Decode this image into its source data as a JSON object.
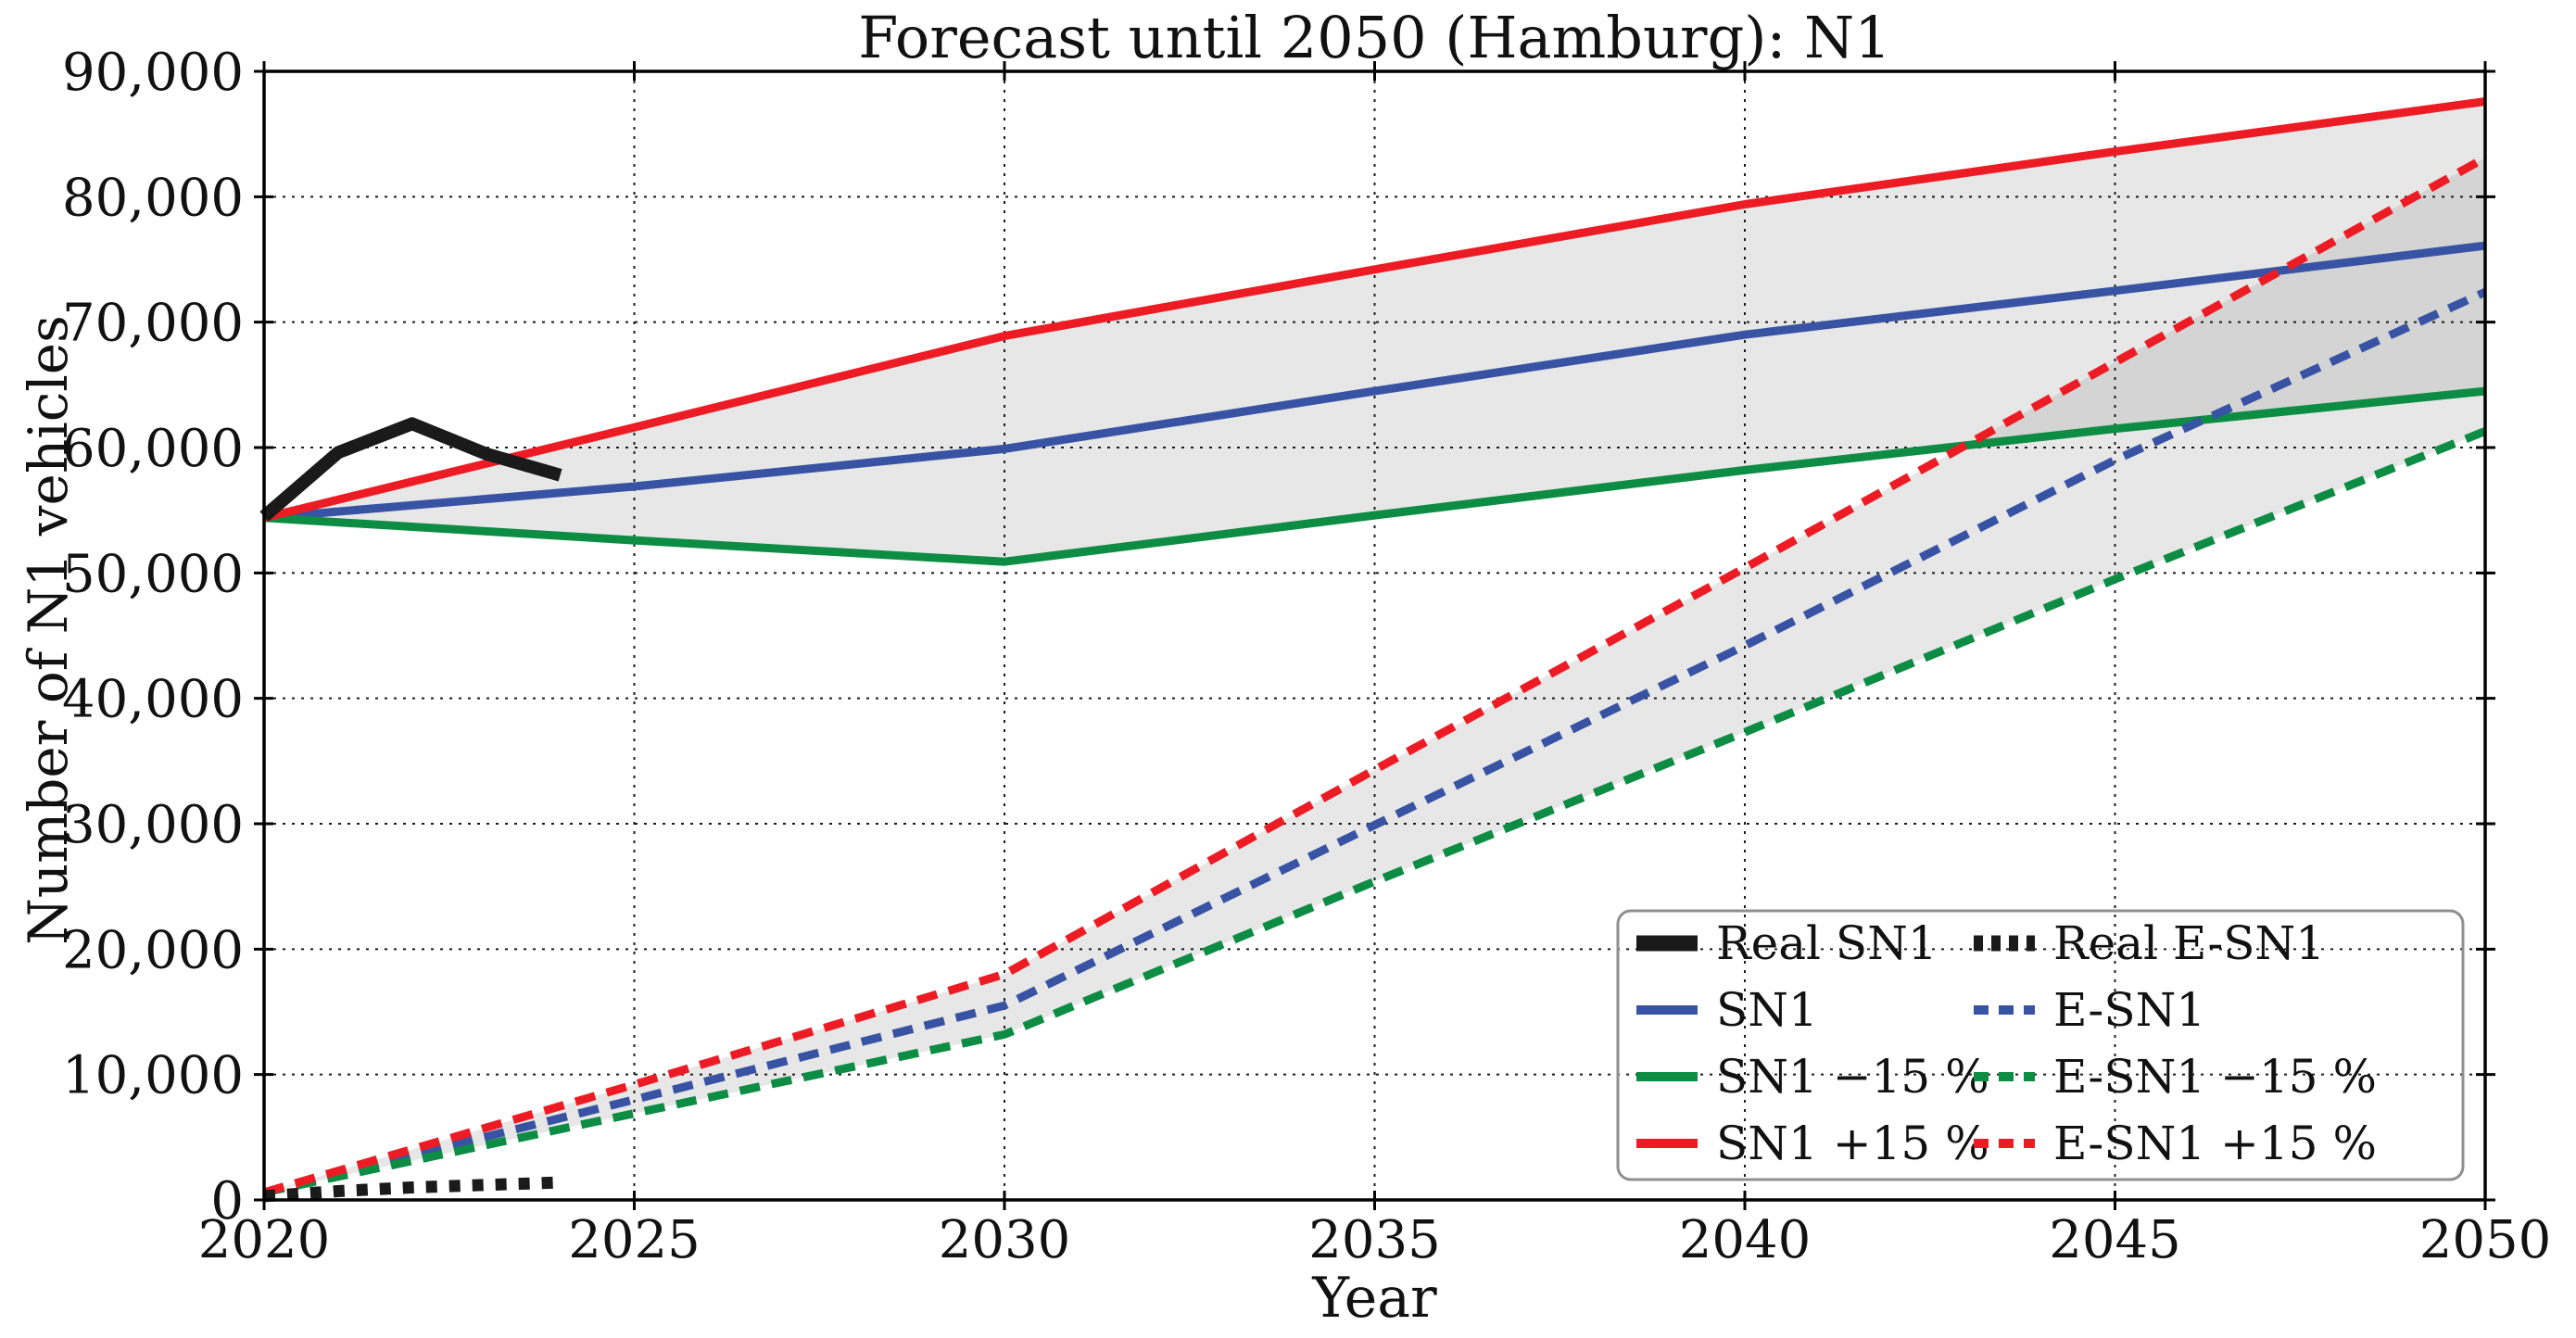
{
  "figure": {
    "background": "#ffffff"
  },
  "chart_data": {
    "type": "line",
    "title": "Forecast until 2050 (Hamburg): N1",
    "xlabel": "Year",
    "ylabel": "Number of N1 vehicles",
    "x_range": [
      2020,
      2050
    ],
    "y_range": [
      0,
      90000
    ],
    "x_ticks": [
      2020,
      2025,
      2030,
      2035,
      2040,
      2045,
      2050
    ],
    "x_tick_labels": [
      "2020",
      "2025",
      "2030",
      "2035",
      "2040",
      "2045",
      "2050"
    ],
    "y_ticks": [
      0,
      10000,
      20000,
      30000,
      40000,
      50000,
      60000,
      70000,
      80000,
      90000
    ],
    "y_tick_labels": [
      "0",
      "10,000",
      "20,000",
      "30,000",
      "40,000",
      "50,000",
      "60,000",
      "70,000",
      "80,000",
      "90,000"
    ],
    "grid": {
      "style": "dotted",
      "color": "#1a1a1a"
    },
    "axis_color": "#000000",
    "bands": [
      {
        "name": "sn1-uncertainty-band",
        "upper": "SN1 +15 %",
        "lower": "SN1 −15 %",
        "fill": "#999999",
        "opacity": 0.24
      },
      {
        "name": "e-sn1-uncertainty-band",
        "upper": "E-SN1 +15 %",
        "lower": "E-SN1 −15 %",
        "fill": "#999999",
        "opacity": 0.24
      }
    ],
    "series": [
      {
        "name": "Real SN1",
        "color": "#1a1a1a",
        "style": "solid",
        "width": 14,
        "points": [
          [
            2020,
            54500
          ],
          [
            2021,
            59600
          ],
          [
            2022,
            61900
          ],
          [
            2023,
            59500
          ],
          [
            2024,
            57800
          ]
        ]
      },
      {
        "name": "SN1",
        "color": "#3953a4",
        "style": "solid",
        "width": 9,
        "points": [
          [
            2020,
            54400
          ],
          [
            2025,
            56900
          ],
          [
            2030,
            59900
          ],
          [
            2035,
            64500
          ],
          [
            2040,
            69000
          ],
          [
            2045,
            72500
          ],
          [
            2050,
            76100
          ]
        ]
      },
      {
        "name": "SN1 −15 %",
        "color": "#0d8c44",
        "style": "solid",
        "width": 9,
        "points": [
          [
            2020,
            54400
          ],
          [
            2025,
            52600
          ],
          [
            2030,
            50900
          ],
          [
            2035,
            54600
          ],
          [
            2040,
            58200
          ],
          [
            2045,
            61500
          ],
          [
            2050,
            64500
          ]
        ]
      },
      {
        "name": "SN1 +15 %",
        "color": "#ed1c24",
        "style": "solid",
        "width": 9,
        "points": [
          [
            2020,
            54400
          ],
          [
            2025,
            61600
          ],
          [
            2030,
            68900
          ],
          [
            2035,
            74200
          ],
          [
            2040,
            79400
          ],
          [
            2045,
            83600
          ],
          [
            2050,
            87600
          ]
        ]
      },
      {
        "name": "Real E-SN1",
        "color": "#1a1a1a",
        "style": "dotted",
        "width": 13,
        "points": [
          [
            2020,
            300
          ],
          [
            2021,
            700
          ],
          [
            2022,
            1000
          ],
          [
            2023,
            1200
          ],
          [
            2024,
            1400
          ]
        ]
      },
      {
        "name": "E-SN1",
        "color": "#3953a4",
        "style": "dashed",
        "width": 9,
        "points": [
          [
            2020,
            600
          ],
          [
            2025,
            8000
          ],
          [
            2030,
            15500
          ],
          [
            2035,
            29900
          ],
          [
            2040,
            44200
          ],
          [
            2045,
            59000
          ],
          [
            2050,
            72400
          ]
        ]
      },
      {
        "name": "E-SN1 −15 %",
        "color": "#0d8c44",
        "style": "dashed",
        "width": 9,
        "points": [
          [
            2020,
            600
          ],
          [
            2025,
            6900
          ],
          [
            2030,
            13200
          ],
          [
            2035,
            25400
          ],
          [
            2040,
            37300
          ],
          [
            2045,
            49500
          ],
          [
            2050,
            61300
          ]
        ]
      },
      {
        "name": "E-SN1 +15 %",
        "color": "#ed1c24",
        "style": "dashed",
        "width": 9,
        "points": [
          [
            2020,
            600
          ],
          [
            2025,
            9200
          ],
          [
            2030,
            18000
          ],
          [
            2035,
            34300
          ],
          [
            2040,
            50400
          ],
          [
            2045,
            66800
          ],
          [
            2050,
            83100
          ]
        ]
      }
    ],
    "legend": {
      "position": "lower right",
      "border_color": "#8f8f8f",
      "columns": [
        [
          "Real SN1",
          "SN1",
          "SN1 −15 %",
          "SN1 +15 %"
        ],
        [
          "Real E-SN1",
          "E-SN1",
          "E-SN1 −15 %",
          "E-SN1 +15 %"
        ]
      ]
    }
  }
}
